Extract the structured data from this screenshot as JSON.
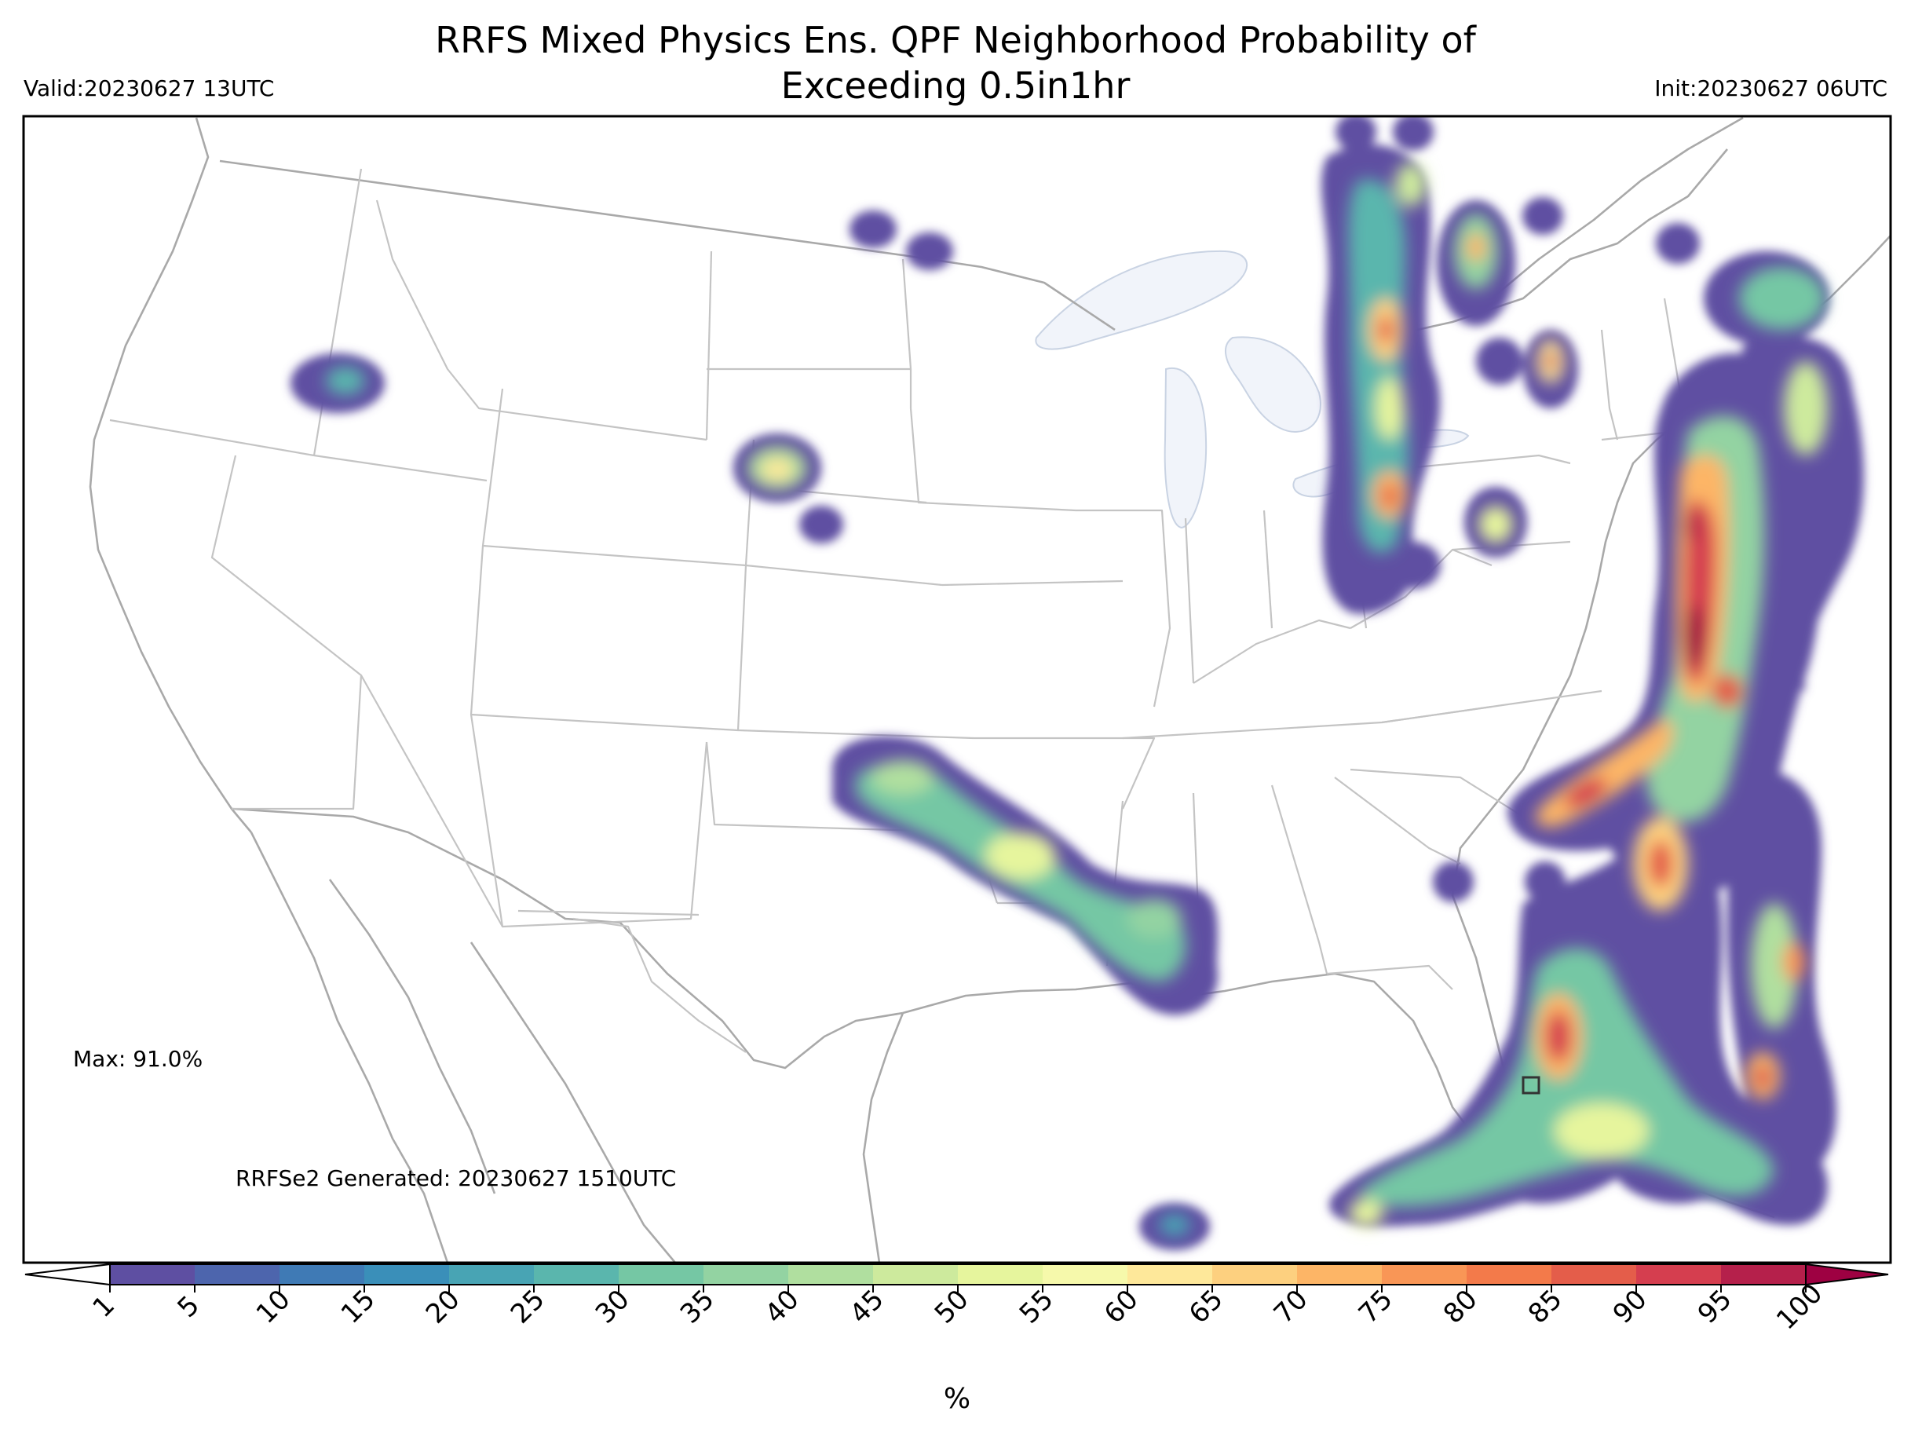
{
  "title_line1": "RRFS Mixed Physics Ens. QPF Neighborhood Probability of",
  "title_line2": "Exceeding 0.5in1hr",
  "valid": "Valid:20230627 13UTC",
  "init": "Init:20230627 06UTC",
  "max_label": "Max: 91.0%",
  "generated_label": "RRFSe2 Generated: 20230627 1510UTC",
  "colorbar": {
    "label": "%",
    "ticks": [
      "1",
      "5",
      "10",
      "15",
      "20",
      "25",
      "30",
      "35",
      "40",
      "45",
      "50",
      "55",
      "60",
      "65",
      "70",
      "75",
      "80",
      "85",
      "90",
      "95",
      "100"
    ],
    "colors": [
      "#5e4fa2",
      "#4d65ad",
      "#3f7ab5",
      "#3a8fb9",
      "#48a4b4",
      "#5ab6ad",
      "#75c7a4",
      "#93d3a2",
      "#b0df9f",
      "#cdea9d",
      "#e6f59d",
      "#f6f9ab",
      "#fee89a",
      "#fdd07f",
      "#fdb566",
      "#f99656",
      "#f37a4a",
      "#e45d4a",
      "#d53e4f",
      "#b5204b"
    ],
    "under_color": "#ffffff",
    "over_color": "#9e0142"
  },
  "colors": {
    "state_lines": "#b5b5b5",
    "coast_lines": "#a9a9a9",
    "lakes": "#f1f4fa",
    "frame": "#000000"
  }
}
